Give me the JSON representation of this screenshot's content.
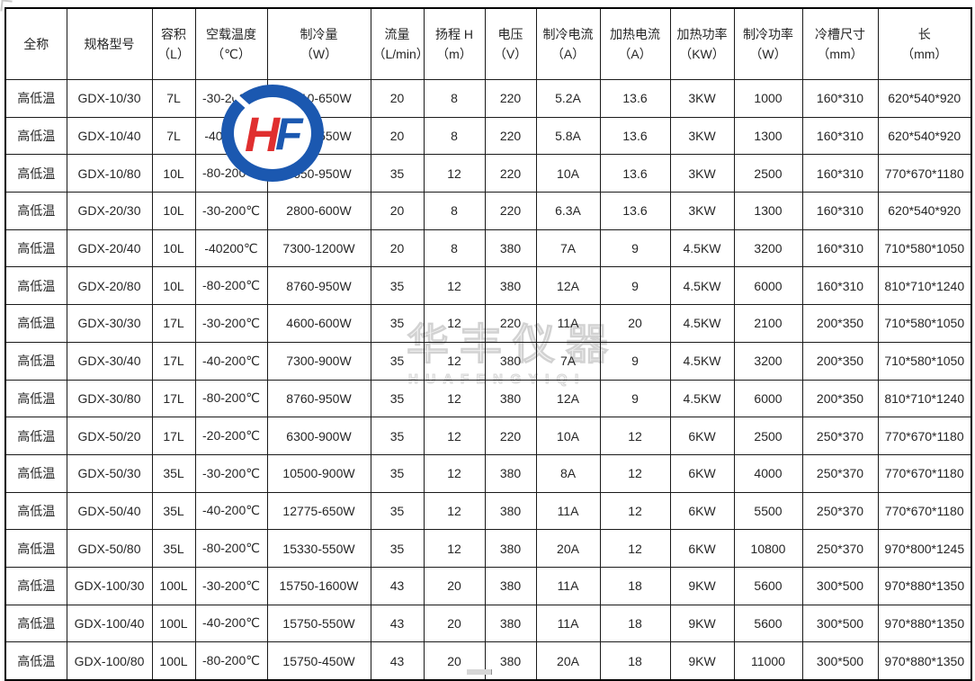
{
  "table": {
    "headers": [
      {
        "label": "全称",
        "unit": ""
      },
      {
        "label": "规格型号",
        "unit": ""
      },
      {
        "label": "容积",
        "unit": "（L）"
      },
      {
        "label": "空载温度",
        "unit": "（℃）"
      },
      {
        "label": "制冷量",
        "unit": "（W）"
      },
      {
        "label": "流量",
        "unit": "（L/min）"
      },
      {
        "label": "扬程 H",
        "unit": "（m）"
      },
      {
        "label": "电压",
        "unit": "（V）"
      },
      {
        "label": "制冷电流",
        "unit": "（A）"
      },
      {
        "label": "加热电流",
        "unit": "（A）"
      },
      {
        "label": "加热功率",
        "unit": "（KW）"
      },
      {
        "label": "制冷功率",
        "unit": "（W）"
      },
      {
        "label": "冷槽尺寸",
        "unit": "（mm）"
      },
      {
        "label": "长",
        "unit": "（mm）"
      }
    ],
    "rows": [
      [
        "高低温",
        "GDX-10/30",
        "7L",
        "-30-200℃",
        "2010-650W",
        "20",
        "8",
        "220",
        "5.2A",
        "13.6",
        "3KW",
        "1000",
        "160*310",
        "620*540*920"
      ],
      [
        "高低温",
        "GDX-10/40",
        "7L",
        "-40200℃",
        "2800-550W",
        "20",
        "8",
        "220",
        "5.8A",
        "13.6",
        "3KW",
        "1300",
        "160*310",
        "620*540*920"
      ],
      [
        "高低温",
        "GDX-10/80",
        "10L",
        "-80-200℃",
        "3650-950W",
        "35",
        "12",
        "220",
        "10A",
        "13.6",
        "3KW",
        "2500",
        "160*310",
        "770*670*1180"
      ],
      [
        "高低温",
        "GDX-20/30",
        "10L",
        "-30-200℃",
        "2800-600W",
        "20",
        "8",
        "220",
        "6.3A",
        "13.6",
        "3KW",
        "1300",
        "160*310",
        "620*540*920"
      ],
      [
        "高低温",
        "GDX-20/40",
        "10L",
        "-40200℃",
        "7300-1200W",
        "20",
        "8",
        "380",
        "7A",
        "9",
        "4.5KW",
        "3200",
        "160*310",
        "710*580*1050"
      ],
      [
        "高低温",
        "GDX-20/80",
        "10L",
        "-80-200℃",
        "8760-950W",
        "35",
        "12",
        "380",
        "12A",
        "9",
        "4.5KW",
        "6000",
        "160*310",
        "810*710*1240"
      ],
      [
        "高低温",
        "GDX-30/30",
        "17L",
        "-30-200℃",
        "4600-600W",
        "35",
        "12",
        "220",
        "11A",
        "20",
        "4.5KW",
        "2100",
        "200*350",
        "710*580*1050"
      ],
      [
        "高低温",
        "GDX-30/40",
        "17L",
        "-40-200℃",
        "7300-900W",
        "35",
        "12",
        "380",
        "7A",
        "9",
        "4.5KW",
        "3200",
        "200*350",
        "710*580*1050"
      ],
      [
        "高低温",
        "GDX-30/80",
        "17L",
        "-80-200℃",
        "8760-950W",
        "35",
        "12",
        "380",
        "12A",
        "9",
        "4.5KW",
        "6000",
        "200*350",
        "810*710*1240"
      ],
      [
        "高低温",
        "GDX-50/20",
        "17L",
        "-20-200℃",
        "6300-900W",
        "35",
        "12",
        "220",
        "10A",
        "12",
        "6KW",
        "2500",
        "250*370",
        "770*670*1180"
      ],
      [
        "高低温",
        "GDX-50/30",
        "35L",
        "-30-200℃",
        "10500-900W",
        "35",
        "12",
        "380",
        "8A",
        "12",
        "6KW",
        "4000",
        "250*370",
        "770*670*1180"
      ],
      [
        "高低温",
        "GDX-50/40",
        "35L",
        "-40-200℃",
        "12775-650W",
        "35",
        "12",
        "380",
        "11A",
        "12",
        "6KW",
        "5500",
        "250*370",
        "770*670*1180"
      ],
      [
        "高低温",
        "GDX-50/80",
        "35L",
        "-80-200℃",
        "15330-550W",
        "35",
        "12",
        "380",
        "20A",
        "12",
        "6KW",
        "10800",
        "250*370",
        "970*800*1245"
      ],
      [
        "高低温",
        "GDX-100/30",
        "100L",
        "-30-200℃",
        "15750-1600W",
        "43",
        "20",
        "380",
        "11A",
        "18",
        "9KW",
        "5600",
        "300*500",
        "970*880*1350"
      ],
      [
        "高低温",
        "GDX-100/40",
        "100L",
        "-40-200℃",
        "15750-550W",
        "43",
        "20",
        "380",
        "11A",
        "18",
        "9KW",
        "5600",
        "300*500",
        "970*880*1350"
      ],
      [
        "高低温",
        "GDX-100/80",
        "100L",
        "-80-200℃",
        "15750-450W",
        "43",
        "20",
        "380",
        "20A",
        "18",
        "9KW",
        "11000",
        "300*500",
        "970*880*1350"
      ]
    ]
  },
  "watermark": {
    "cn": "华丰仪器",
    "en": "HUAFENGYIQI",
    "color": "#d2d2d2"
  },
  "logo": {
    "h": "H",
    "f": "F",
    "ring_color": "#1b58b0",
    "h_color": "#e02f2f",
    "f_color": "#1b58b0"
  }
}
